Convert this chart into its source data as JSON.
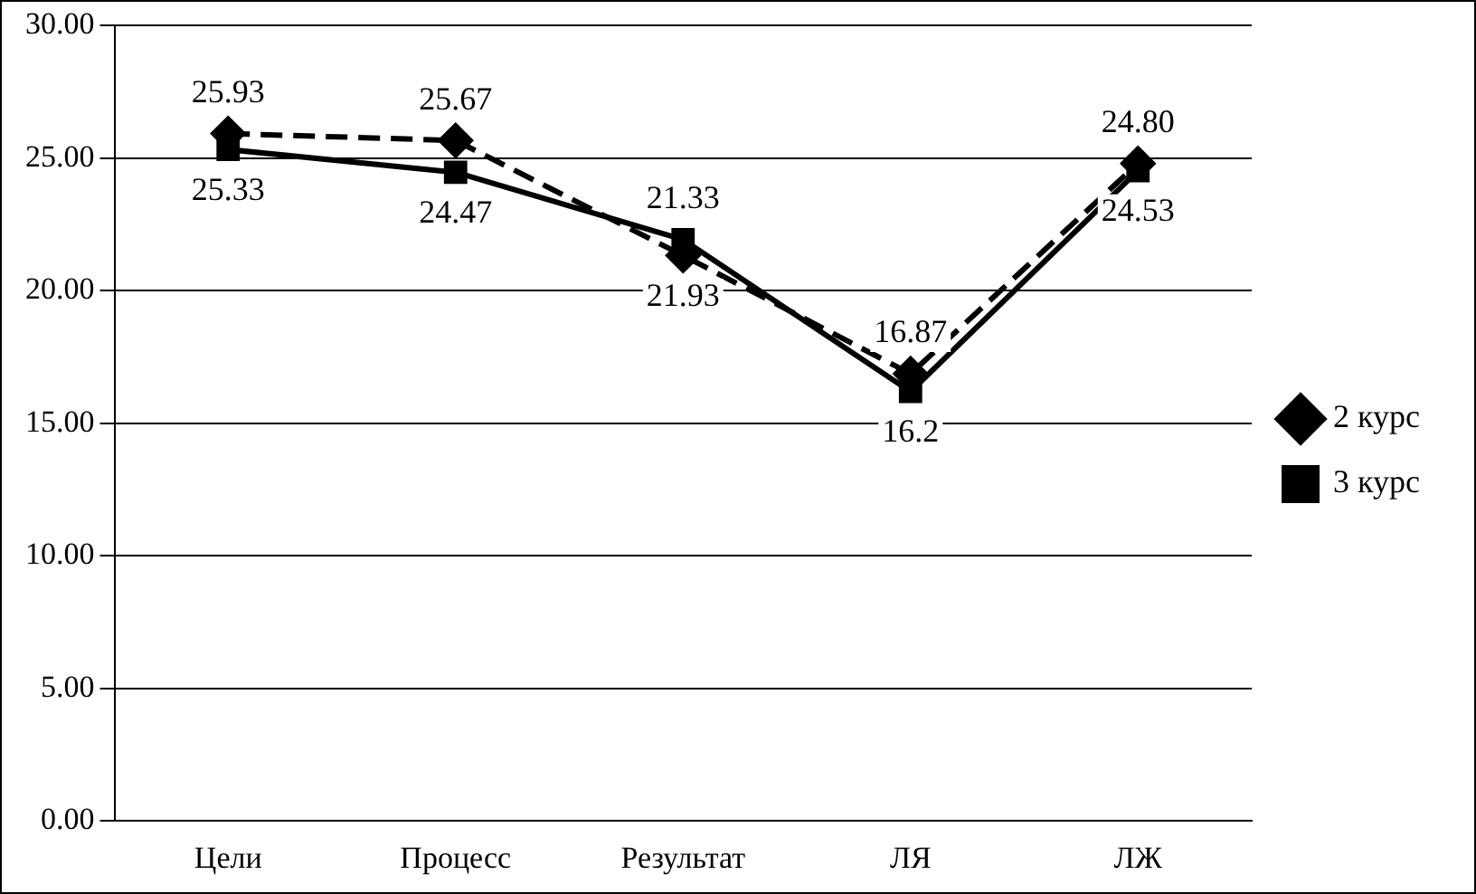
{
  "chart_data": {
    "type": "line",
    "categories": [
      "Цели",
      "Процесс",
      "Результат",
      "ЛЯ",
      "ЛЖ"
    ],
    "series": [
      {
        "name": "2 курс",
        "color": "#000000",
        "values": [
          25.93,
          25.67,
          21.33,
          16.87,
          24.8
        ],
        "value_labels": [
          "25.93",
          "25.67",
          "21.33",
          "16.87",
          "24.80"
        ],
        "marker": "diamond",
        "line_style": "dashed"
      },
      {
        "name": "3 курс",
        "color": "#000000",
        "values": [
          25.33,
          24.47,
          21.93,
          16.2,
          24.53
        ],
        "value_labels": [
          "25.33",
          "24.47",
          "21.93",
          "16.2",
          "24.53"
        ],
        "marker": "square",
        "line_style": "solid"
      }
    ],
    "ylim": [
      0,
      30
    ],
    "yticks": [
      {
        "value": 0,
        "label": "0.00"
      },
      {
        "value": 5,
        "label": "5.00"
      },
      {
        "value": 10,
        "label": "10.00"
      },
      {
        "value": 15,
        "label": "15.00"
      },
      {
        "value": 20,
        "label": "20.00"
      },
      {
        "value": 25,
        "label": "25.00"
      },
      {
        "value": 30,
        "label": "30.00"
      }
    ],
    "grid": "y",
    "legend": "right"
  }
}
